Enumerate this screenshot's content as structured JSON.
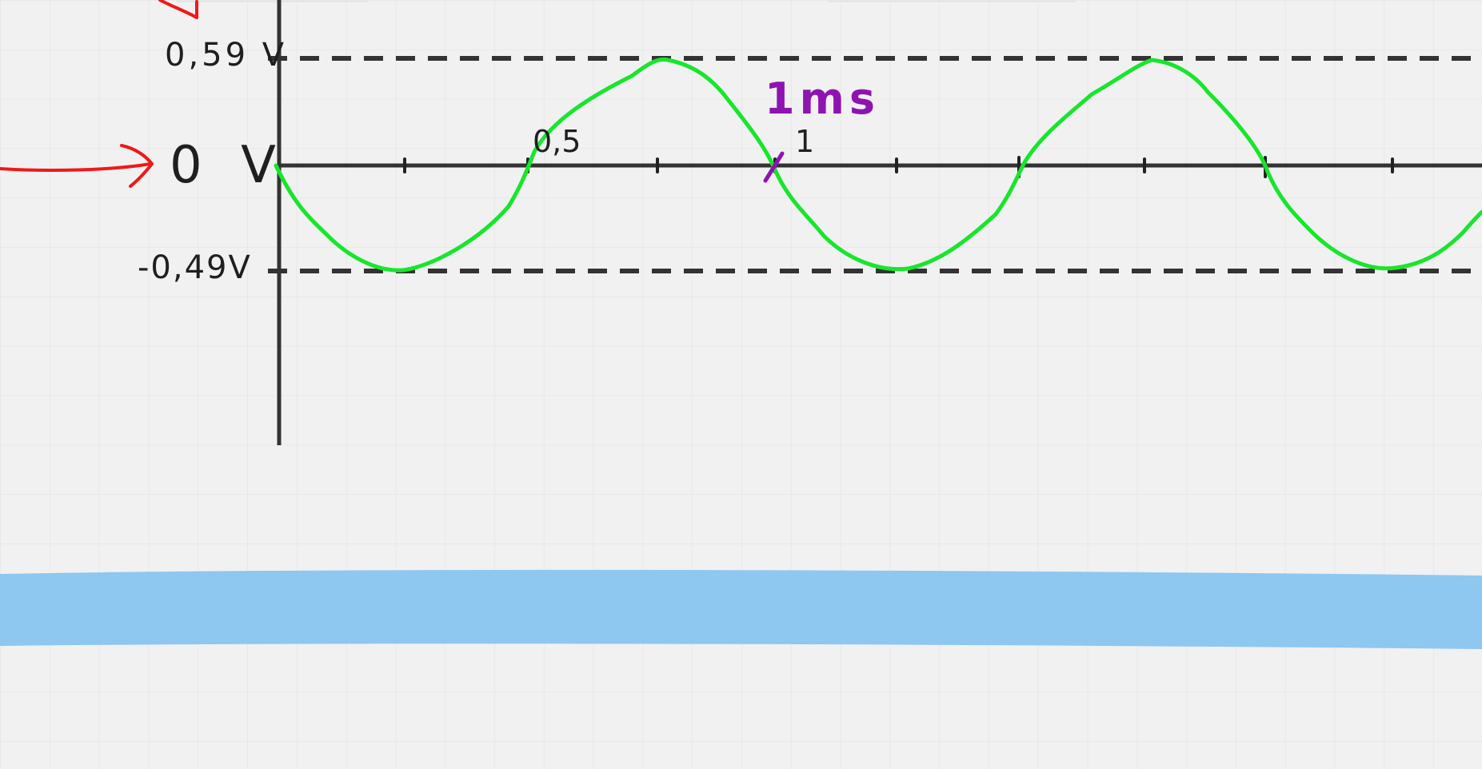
{
  "sketch": {
    "labels": {
      "top_voltage": "0,59 V",
      "zero_voltage": "0 V",
      "bottom_voltage": "-0,49V",
      "tick_half": "0,5",
      "tick_one": "1",
      "period": "1ms"
    },
    "colors": {
      "ink": "#1f1f1f",
      "wave": "#18e52c",
      "arrow": "#f01818",
      "annotation": "#8e14b0",
      "highlight": "#8ec7f0",
      "background": "#f1f1f1"
    }
  }
}
